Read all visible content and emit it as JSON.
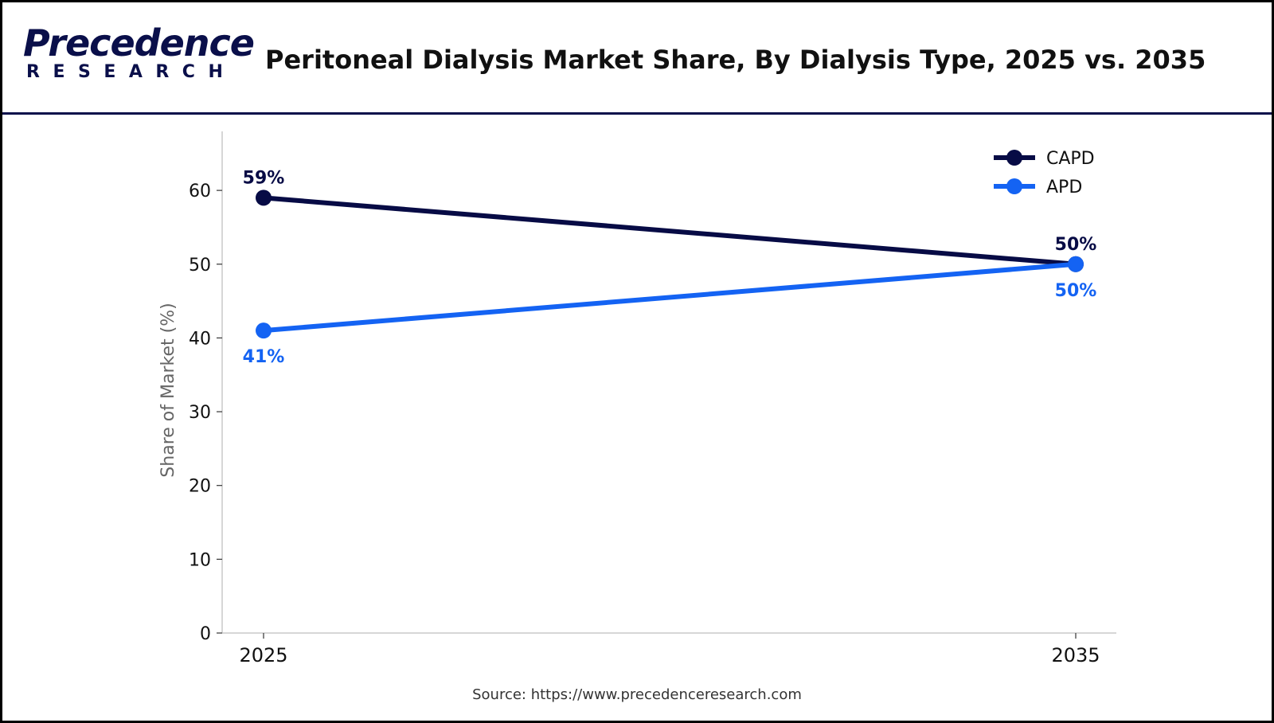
{
  "header": {
    "logo_top": "Precedence",
    "logo_bottom": "RESEARCH",
    "title": "Peritoneal Dialysis Market Share, By Dialysis Type, 2025 vs. 2035"
  },
  "footer": {
    "source": "Source: https://www.precedenceresearch.com"
  },
  "colors": {
    "brand_navy": "#0a0f4a",
    "capd": "#070b45",
    "apd": "#1463f3"
  },
  "chart_data": {
    "type": "line",
    "title": "Peritoneal Dialysis Market Share, By Dialysis Type, 2025 vs. 2035",
    "xlabel": "",
    "ylabel": "Share of Market (%)",
    "categories": [
      "2025",
      "2035"
    ],
    "ylim": [
      0,
      68
    ],
    "yticks": [
      0,
      10,
      20,
      30,
      40,
      50,
      60
    ],
    "grid": false,
    "legend": "top-right",
    "series": [
      {
        "name": "CAPD",
        "color": "#070b45",
        "values": [
          59,
          50
        ],
        "labels": [
          "59%",
          "50%"
        ]
      },
      {
        "name": "APD",
        "color": "#1463f3",
        "values": [
          41,
          50
        ],
        "labels": [
          "41%",
          "50%"
        ]
      }
    ]
  }
}
